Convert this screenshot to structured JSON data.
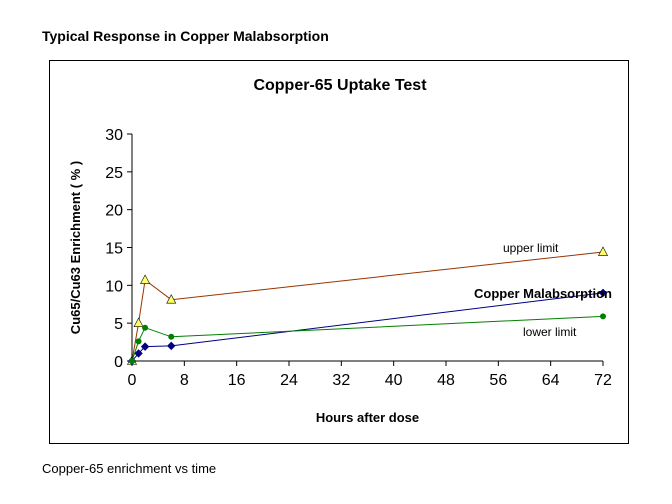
{
  "header": {
    "title": "Typical Response in Copper Malabsorption"
  },
  "footer": {
    "caption": "Copper-65 enrichment vs time"
  },
  "chart_data": {
    "type": "line",
    "title": "Copper-65 Uptake Test",
    "xlabel": "Hours after dose",
    "ylabel": "Cu65/Cu63 Enrichment ( % )",
    "xlim": [
      0,
      72
    ],
    "ylim": [
      0,
      30
    ],
    "xticks": [
      0,
      8,
      16,
      24,
      32,
      40,
      48,
      56,
      64,
      72
    ],
    "yticks": [
      0,
      5,
      10,
      15,
      20,
      25,
      30
    ],
    "grid": false,
    "legend": "none",
    "series": [
      {
        "name": "upper limit",
        "color": "#993300",
        "marker": "triangle",
        "marker_color": "#ffff66",
        "x": [
          0,
          1,
          2,
          6,
          72
        ],
        "y": [
          0,
          5,
          10.7,
          8.1,
          14.4
        ]
      },
      {
        "name": "Copper Malabsorption",
        "color": "#000080",
        "marker": "diamond",
        "marker_color": "#000080",
        "x": [
          0,
          1,
          2,
          6,
          72
        ],
        "y": [
          0,
          1,
          1.9,
          2,
          9
        ]
      },
      {
        "name": "lower limit",
        "color": "#008000",
        "marker": "circle",
        "marker_color": "#008000",
        "x": [
          0,
          1,
          2,
          6,
          72
        ],
        "y": [
          0,
          2.6,
          4.4,
          3.2,
          5.9
        ]
      }
    ]
  }
}
